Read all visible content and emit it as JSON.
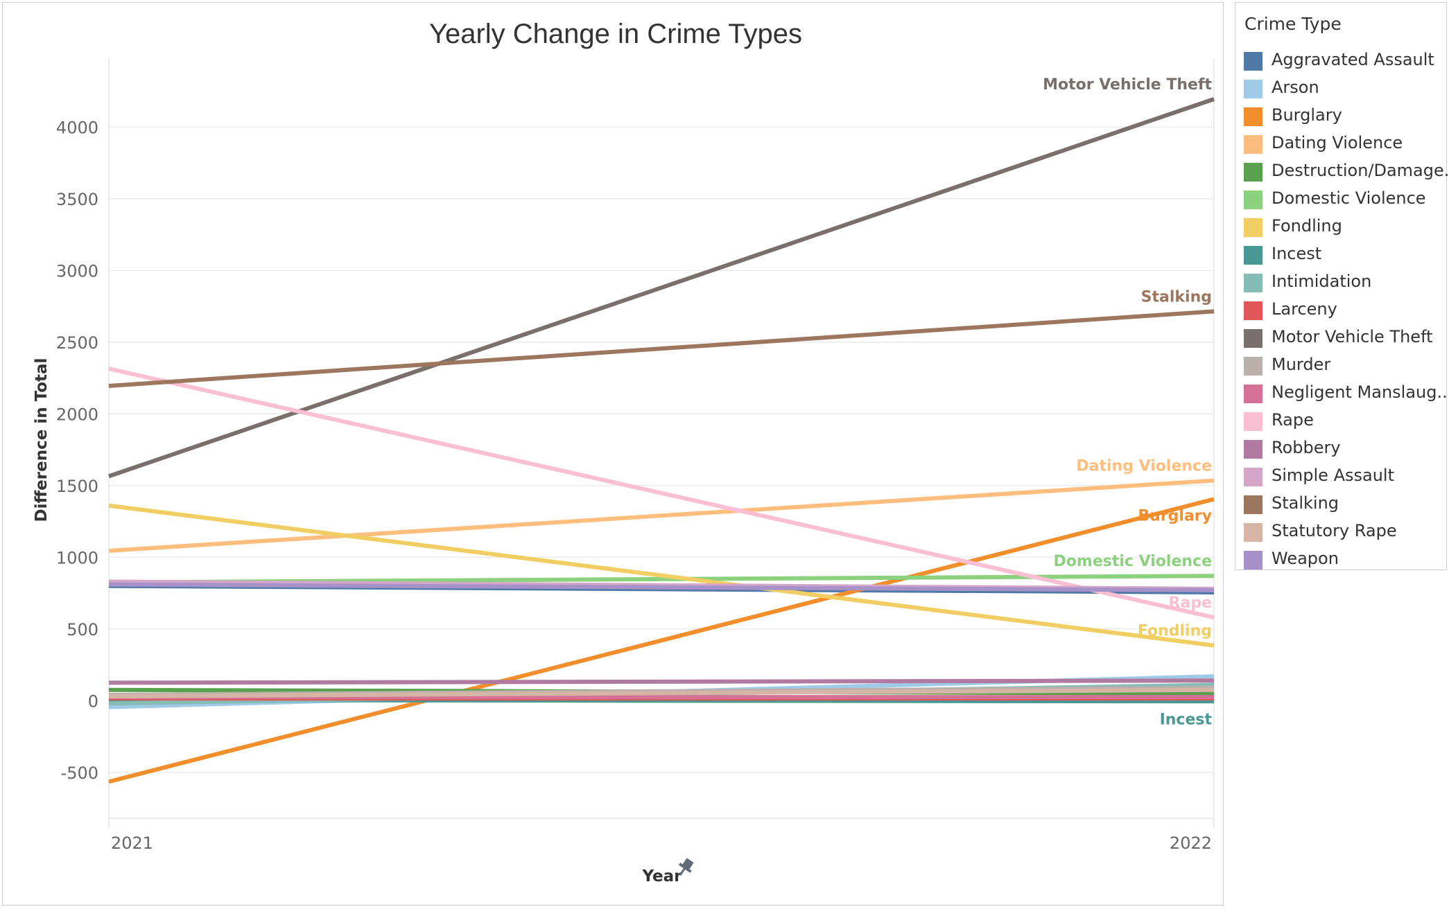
{
  "chart_data": {
    "type": "line",
    "title": "Yearly Change in Crime Types",
    "xlabel": "Year",
    "ylabel": "Difference in Total",
    "x": [
      "2021",
      "2022"
    ],
    "ylim": [
      -820,
      4480
    ],
    "yticks": [
      -500,
      0,
      500,
      1000,
      1500,
      2000,
      2500,
      3000,
      3500,
      4000
    ],
    "yticklabels": [
      "-500",
      "0",
      "500",
      "1000",
      "1500",
      "2000",
      "2500",
      "3000",
      "3500",
      "4000"
    ],
    "grid": true,
    "legend_title": "Crime Type",
    "legend_position": "right",
    "series": [
      {
        "name": "Aggravated Assault",
        "legend_label": "Aggravated Assault",
        "color": "#4e79a7",
        "values": [
          800,
          755
        ]
      },
      {
        "name": "Arson",
        "legend_label": "Arson",
        "color": "#a0cbe8",
        "values": [
          -45,
          170
        ]
      },
      {
        "name": "Burglary",
        "legend_label": "Burglary",
        "color": "#f28e2b",
        "values": [
          -565,
          1405
        ],
        "label": "Burglary"
      },
      {
        "name": "Dating Violence",
        "legend_label": "Dating Violence",
        "color": "#ffbe7d",
        "values": [
          1045,
          1535
        ],
        "label": "Dating Violence"
      },
      {
        "name": "Destruction/Damage..",
        "legend_label": "Destruction/Damage..",
        "color": "#59a14f",
        "values": [
          75,
          50
        ]
      },
      {
        "name": "Domestic Violence",
        "legend_label": "Domestic Violence",
        "color": "#8cd17d",
        "values": [
          825,
          870
        ],
        "label": "Domestic Violence"
      },
      {
        "name": "Fondling",
        "legend_label": "Fondling",
        "color": "#f1ce63",
        "values": [
          1360,
          385
        ],
        "label": "Fondling"
      },
      {
        "name": "Incest",
        "legend_label": "Incest",
        "color": "#499894",
        "values": [
          5,
          -5
        ],
        "label": "Incest"
      },
      {
        "name": "Intimidation",
        "legend_label": "Intimidation",
        "color": "#86bcb6",
        "values": [
          -20,
          110
        ]
      },
      {
        "name": "Larceny",
        "legend_label": "Larceny",
        "color": "#e15759",
        "values": [
          15,
          15
        ]
      },
      {
        "name": "Motor Vehicle Theft",
        "legend_label": "Motor Vehicle Theft",
        "color": "#79706e",
        "values": [
          1565,
          4195
        ],
        "label": "Motor Vehicle Theft"
      },
      {
        "name": "Murder",
        "legend_label": "Murder",
        "color": "#bab0ac",
        "values": [
          40,
          90
        ]
      },
      {
        "name": "Negligent Manslaug..",
        "legend_label": "Negligent Manslaug..",
        "color": "#d37295",
        "values": [
          25,
          25
        ]
      },
      {
        "name": "Rape",
        "legend_label": "Rape",
        "color": "#fabfd2",
        "values": [
          2315,
          580
        ],
        "label": "Rape"
      },
      {
        "name": "Robbery",
        "legend_label": "Robbery",
        "color": "#b07aa1",
        "values": [
          125,
          140
        ]
      },
      {
        "name": "Simple Assault",
        "legend_label": "Simple Assault",
        "color": "#d4a6c8",
        "values": [
          830,
          780
        ]
      },
      {
        "name": "Stalking",
        "legend_label": "Stalking",
        "color": "#9d7660",
        "values": [
          2195,
          2715
        ],
        "label": "Stalking"
      },
      {
        "name": "Statutory Rape",
        "legend_label": "Statutory Rape",
        "color": "#d7b5a6",
        "values": [
          30,
          75
        ]
      },
      {
        "name": "Weapon",
        "legend_label": "Weapon",
        "color": "#a791c9",
        "values": [
          810,
          770
        ]
      }
    ]
  }
}
